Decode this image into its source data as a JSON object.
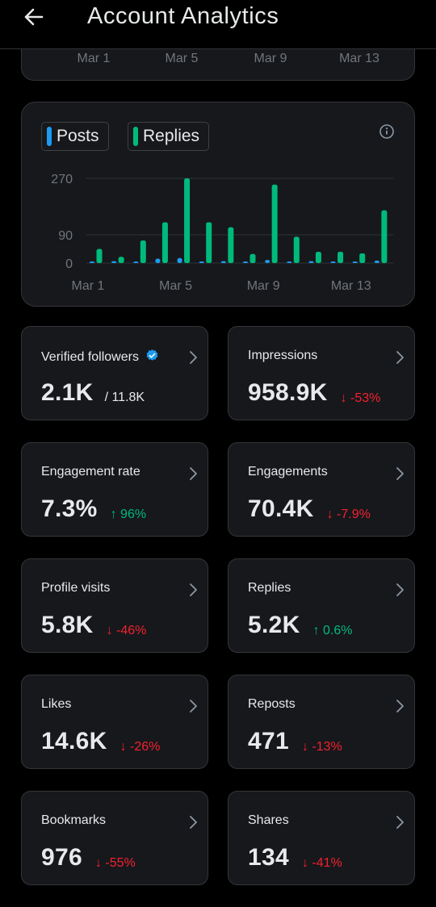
{
  "header": {
    "title": "Account Analytics"
  },
  "previous_chart": {
    "x_ticks": [
      "Mar 1",
      "Mar 5",
      "Mar 9",
      "Mar 13"
    ]
  },
  "chart_data": {
    "type": "bar",
    "legend": [
      {
        "name": "Posts",
        "color": "#1d9bf0"
      },
      {
        "name": "Replies",
        "color": "#00ba7c"
      }
    ],
    "x_ticks": [
      "Mar 1",
      "Mar 5",
      "Mar 9",
      "Mar 13"
    ],
    "y_ticks": [
      0,
      90,
      270
    ],
    "ylim": [
      0,
      280
    ],
    "series": [
      {
        "name": "Posts",
        "color": "#1d9bf0",
        "values": [
          4,
          6,
          2,
          14,
          16,
          5,
          6,
          3,
          10,
          3,
          6,
          2,
          5,
          8
        ]
      },
      {
        "name": "Replies",
        "color": "#00ba7c",
        "values": [
          45,
          20,
          72,
          130,
          270,
          130,
          114,
          29,
          250,
          84,
          36,
          36,
          31,
          168
        ]
      }
    ],
    "grid": true
  },
  "metrics": [
    {
      "label": "Verified followers",
      "value": "2.1K",
      "sub": "/ 11.8K",
      "verified": true
    },
    {
      "label": "Impressions",
      "value": "958.9K",
      "delta": "-53%",
      "direction": "down"
    },
    {
      "label": "Engagement rate",
      "value": "7.3%",
      "delta": "96%",
      "direction": "up"
    },
    {
      "label": "Engagements",
      "value": "70.4K",
      "delta": "-7.9%",
      "direction": "down"
    },
    {
      "label": "Profile visits",
      "value": "5.8K",
      "delta": "-46%",
      "direction": "down"
    },
    {
      "label": "Replies",
      "value": "5.2K",
      "delta": "0.6%",
      "direction": "up"
    },
    {
      "label": "Likes",
      "value": "14.6K",
      "delta": "-26%",
      "direction": "down"
    },
    {
      "label": "Reposts",
      "value": "471",
      "delta": "-13%",
      "direction": "down"
    },
    {
      "label": "Bookmarks",
      "value": "976",
      "delta": "-55%",
      "direction": "down"
    },
    {
      "label": "Shares",
      "value": "134",
      "delta": "-41%",
      "direction": "down"
    }
  ],
  "icons": {
    "back": "arrow-left-icon",
    "info": "info-icon",
    "chevron": "chevron-right-icon",
    "verified": "verified-badge-icon",
    "arrow_down": "arrow-down-icon",
    "arrow_up": "arrow-up-icon"
  },
  "colors": {
    "down": "#f4212e",
    "up": "#00ba7c",
    "verified": "#1d9bf0"
  }
}
